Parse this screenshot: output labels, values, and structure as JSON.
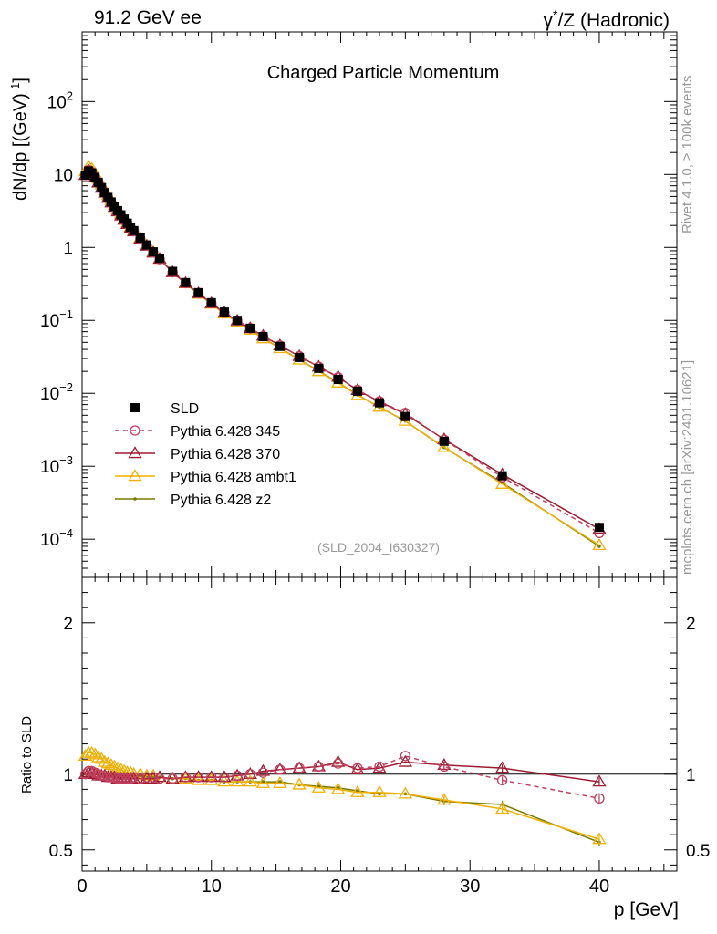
{
  "header": {
    "left": "91.2 GeV ee",
    "right_prefix": "γ",
    "right_sup": "*",
    "right_suffix": "/Z (Hadronic)"
  },
  "side_labels": {
    "top": "Rivet 4.1.0, ≥ 100k events",
    "bottom": "mcplots.cern.ch [arXiv:2401.10621]"
  },
  "chart_data": {
    "type": "line",
    "title": "Charged Particle Momentum",
    "watermark": "(SLD_2004_I630327)",
    "xlabel": "p [GeV]",
    "ylabel": "dN/dp [(GeV)",
    "ylabel_sup": "-1",
    "ylabel_close": "]",
    "ratio_ylabel": "Ratio to SLD",
    "xlim": [
      0,
      46
    ],
    "ylim_log": [
      3e-05,
      900
    ],
    "ratio_ylim": [
      0.36,
      2.3
    ],
    "x_ticks": [
      {
        "v": 0,
        "label": "0"
      },
      {
        "v": 10,
        "label": "10"
      },
      {
        "v": 20,
        "label": "20"
      },
      {
        "v": 30,
        "label": "30"
      },
      {
        "v": 40,
        "label": "40"
      }
    ],
    "y_ticks": [
      {
        "v": 100,
        "base": "10",
        "exp": "2"
      },
      {
        "v": 10,
        "base": "10",
        "exp": ""
      },
      {
        "v": 1,
        "base": "1",
        "exp": ""
      },
      {
        "v": 0.1,
        "base": "10",
        "exp": "−1"
      },
      {
        "v": 0.01,
        "base": "10",
        "exp": "−2"
      },
      {
        "v": 0.001,
        "base": "10",
        "exp": "−3"
      },
      {
        "v": 0.0001,
        "base": "10",
        "exp": "−4"
      }
    ],
    "ratio_ticks": [
      {
        "v": 0.5,
        "label": "0.5"
      },
      {
        "v": 1,
        "label": "1"
      },
      {
        "v": 2,
        "label": "2"
      }
    ],
    "x": [
      0.25,
      0.5,
      0.75,
      1.0,
      1.25,
      1.5,
      1.75,
      2.0,
      2.25,
      2.5,
      2.75,
      3.0,
      3.25,
      3.5,
      3.75,
      4.0,
      4.5,
      5.0,
      5.5,
      6.0,
      7.0,
      8.0,
      9.0,
      10.0,
      11.0,
      12.0,
      13.0,
      14.0,
      15.3,
      16.8,
      18.3,
      19.8,
      21.3,
      23.0,
      25.0,
      28.0,
      32.5,
      40.0
    ],
    "reference": {
      "name": "SLD",
      "values": [
        9.8,
        11.2,
        10.5,
        9.1,
        7.8,
        6.6,
        5.65,
        4.85,
        4.2,
        3.65,
        3.2,
        2.8,
        2.45,
        2.15,
        1.9,
        1.7,
        1.35,
        1.08,
        0.87,
        0.71,
        0.47,
        0.33,
        0.24,
        0.175,
        0.13,
        0.1,
        0.078,
        0.06,
        0.044,
        0.031,
        0.022,
        0.0155,
        0.0107,
        0.0074,
        0.0048,
        0.0022,
        0.00074,
        0.000145
      ]
    },
    "series": [
      {
        "name": "Pythia 6.428 345",
        "color": "#c0405e",
        "marker": "circle",
        "dashed": true,
        "ratio": [
          1.0,
          1.02,
          1.02,
          1.01,
          1.0,
          0.99,
          0.99,
          0.98,
          0.98,
          0.98,
          0.97,
          0.97,
          0.97,
          0.97,
          0.97,
          0.98,
          0.97,
          0.98,
          0.98,
          0.97,
          0.97,
          0.98,
          0.98,
          0.98,
          0.98,
          0.99,
          1.0,
          1.01,
          1.03,
          1.04,
          1.05,
          1.07,
          1.04,
          1.05,
          1.12,
          1.05,
          0.96,
          0.84
        ]
      },
      {
        "name": "Pythia 6.428 370",
        "color": "#9e1b32",
        "marker": "triangle",
        "dashed": false,
        "ratio": [
          1.0,
          1.01,
          1.01,
          1.0,
          0.99,
          0.99,
          0.99,
          0.98,
          0.98,
          0.98,
          0.97,
          0.97,
          0.97,
          0.97,
          0.97,
          0.97,
          0.97,
          0.97,
          0.97,
          0.98,
          0.97,
          0.98,
          0.98,
          0.98,
          0.98,
          0.99,
          1.0,
          1.02,
          1.03,
          1.04,
          1.05,
          1.08,
          1.03,
          1.04,
          1.08,
          1.06,
          1.04,
          0.95
        ]
      },
      {
        "name": "Pythia 6.428 ambt1",
        "color": "#f0b000",
        "marker": "triangle",
        "dashed": false,
        "ratio": [
          1.12,
          1.14,
          1.14,
          1.13,
          1.11,
          1.1,
          1.08,
          1.07,
          1.06,
          1.05,
          1.04,
          1.03,
          1.02,
          1.01,
          1.01,
          1.0,
          1.0,
          0.99,
          0.99,
          0.98,
          0.97,
          0.97,
          0.96,
          0.96,
          0.95,
          0.95,
          0.95,
          0.94,
          0.94,
          0.93,
          0.91,
          0.9,
          0.88,
          0.88,
          0.87,
          0.83,
          0.77,
          0.57
        ]
      },
      {
        "name": "Pythia 6.428 z2",
        "color": "#7a7a00",
        "marker": "dot",
        "dashed": false,
        "ratio": [
          1.0,
          1.0,
          1.0,
          1.0,
          1.0,
          0.99,
          0.99,
          0.99,
          0.99,
          0.99,
          0.99,
          0.99,
          0.99,
          0.99,
          0.99,
          0.99,
          0.99,
          0.98,
          0.98,
          0.98,
          0.97,
          0.97,
          0.96,
          0.96,
          0.95,
          0.95,
          0.95,
          0.95,
          0.95,
          0.93,
          0.92,
          0.91,
          0.89,
          0.87,
          0.87,
          0.82,
          0.8,
          0.55
        ]
      }
    ]
  }
}
